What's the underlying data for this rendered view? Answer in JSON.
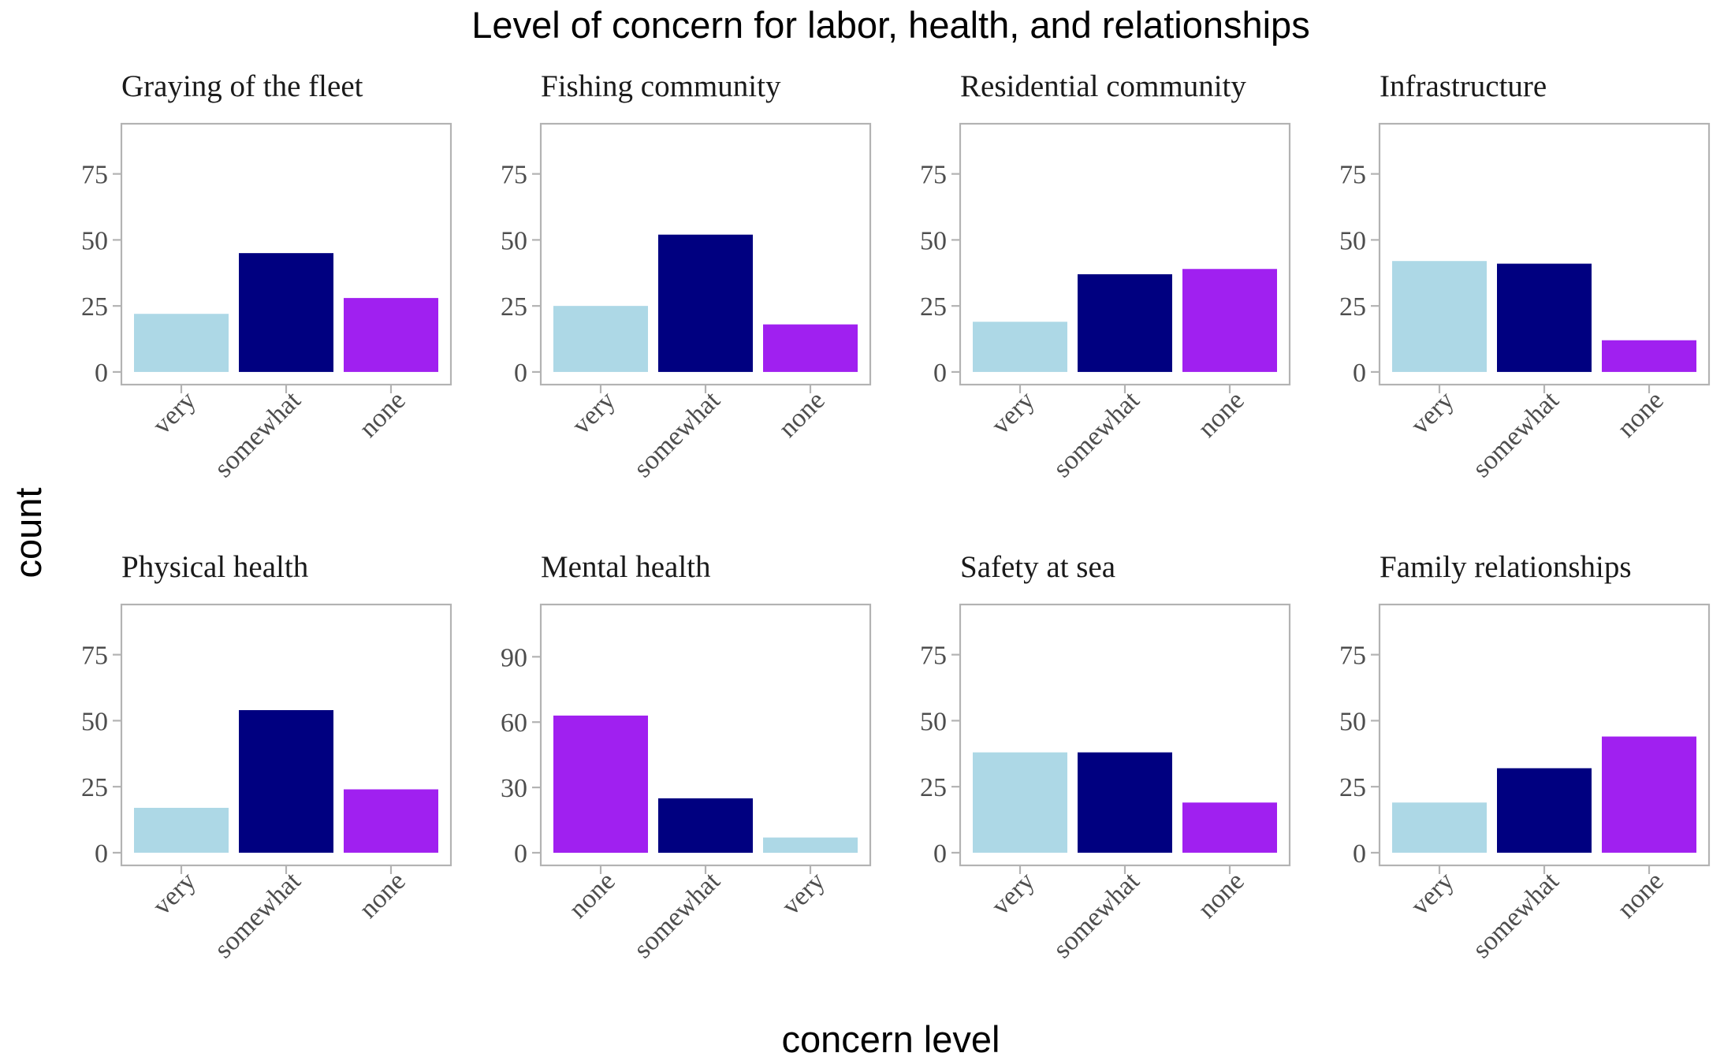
{
  "chart_data": {
    "type": "bar",
    "title": "Level of concern for labor, health, and relationships",
    "xlabel": "concern level",
    "ylabel": "count",
    "colors": {
      "very": "#ADD8E6",
      "somewhat": "#000080",
      "none": "#A020F0"
    },
    "grid": false,
    "legend": "none",
    "panels": [
      {
        "title": "Graying of the fleet",
        "categories": [
          "very",
          "somewhat",
          "none"
        ],
        "values": [
          22,
          45,
          28
        ],
        "yticks": [
          "0",
          "25",
          "50",
          "75"
        ],
        "ylim": [
          -4.8,
          94
        ]
      },
      {
        "title": "Fishing community",
        "categories": [
          "very",
          "somewhat",
          "none"
        ],
        "values": [
          25,
          52,
          18
        ],
        "yticks": [
          "0",
          "25",
          "50",
          "75"
        ],
        "ylim": [
          -4.8,
          94
        ]
      },
      {
        "title": "Residential community",
        "categories": [
          "very",
          "somewhat",
          "none"
        ],
        "values": [
          19,
          37,
          39
        ],
        "yticks": [
          "0",
          "25",
          "50",
          "75"
        ],
        "ylim": [
          -4.8,
          94
        ]
      },
      {
        "title": "Infrastructure",
        "categories": [
          "very",
          "somewhat",
          "none"
        ],
        "values": [
          42,
          41,
          12
        ],
        "yticks": [
          "0",
          "25",
          "50",
          "75"
        ],
        "ylim": [
          -4.8,
          94
        ]
      },
      {
        "title": "Physical health",
        "categories": [
          "very",
          "somewhat",
          "none"
        ],
        "values": [
          17,
          54,
          24
        ],
        "yticks": [
          "0",
          "25",
          "50",
          "75"
        ],
        "ylim": [
          -4.8,
          94
        ]
      },
      {
        "title": "Mental health",
        "categories": [
          "none",
          "somewhat",
          "very"
        ],
        "values": [
          63,
          25,
          7
        ],
        "yticks": [
          "0",
          "30",
          "60",
          "90"
        ],
        "ylim": [
          -5.8,
          114
        ]
      },
      {
        "title": "Safety at sea",
        "categories": [
          "very",
          "somewhat",
          "none"
        ],
        "values": [
          38,
          38,
          19
        ],
        "yticks": [
          "0",
          "25",
          "50",
          "75"
        ],
        "ylim": [
          -4.8,
          94
        ]
      },
      {
        "title": "Family relationships",
        "categories": [
          "very",
          "somewhat",
          "none"
        ],
        "values": [
          19,
          32,
          44
        ],
        "yticks": [
          "0",
          "25",
          "50",
          "75"
        ],
        "ylim": [
          -4.8,
          94
        ]
      }
    ]
  }
}
